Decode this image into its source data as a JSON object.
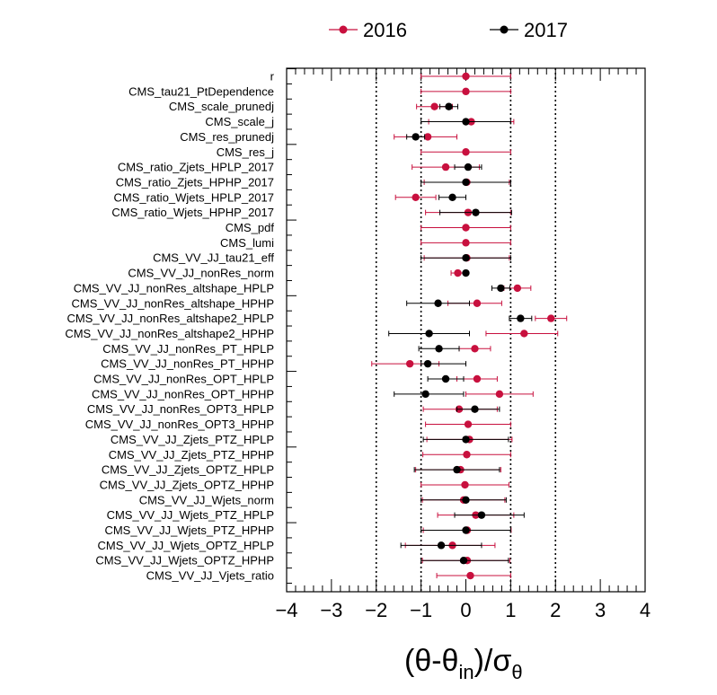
{
  "chart_data": {
    "type": "scatter",
    "xlabel": "(θ-θin)/σθ",
    "xlabel_parts": {
      "open": "(θ-θ",
      "sub1": "in",
      "mid": ")/σ",
      "sub2": "θ"
    },
    "xlim": [
      -4,
      4
    ],
    "x_ticks": [
      "−4",
      "−3",
      "−2",
      "−1",
      "0",
      "1",
      "2",
      "3",
      "4"
    ],
    "reference_lines": [
      -2,
      -1,
      1,
      2
    ],
    "grid": false,
    "legend_position": "top",
    "categories": [
      "r",
      "CMS_tau21_PtDependence",
      "CMS_scale_prunedj",
      "CMS_scale_j",
      "CMS_res_prunedj",
      "CMS_res_j",
      "CMS_ratio_Zjets_HPLP_2017",
      "CMS_ratio_Zjets_HPHP_2017",
      "CMS_ratio_Wjets_HPLP_2017",
      "CMS_ratio_Wjets_HPHP_2017",
      "CMS_pdf",
      "CMS_lumi",
      "CMS_VV_JJ_tau21_eff",
      "CMS_VV_JJ_nonRes_norm",
      "CMS_VV_JJ_nonRes_altshape_HPLP",
      "CMS_VV_JJ_nonRes_altshape_HPHP",
      "CMS_VV_JJ_nonRes_altshape2_HPLP",
      "CMS_VV_JJ_nonRes_altshape2_HPHP",
      "CMS_VV_JJ_nonRes_PT_HPLP",
      "CMS_VV_JJ_nonRes_PT_HPHP",
      "CMS_VV_JJ_nonRes_OPT_HPLP",
      "CMS_VV_JJ_nonRes_OPT_HPHP",
      "CMS_VV_JJ_nonRes_OPT3_HPLP",
      "CMS_VV_JJ_nonRes_OPT3_HPHP",
      "CMS_VV_JJ_Zjets_PTZ_HPLP",
      "CMS_VV_JJ_Zjets_PTZ_HPHP",
      "CMS_VV_JJ_Zjets_OPTZ_HPLP",
      "CMS_VV_JJ_Zjets_OPTZ_HPHP",
      "CMS_VV_JJ_Wjets_norm",
      "CMS_VV_JJ_Wjets_PTZ_HPLP",
      "CMS_VV_JJ_Wjets_PTZ_HPHP",
      "CMS_VV_JJ_Wjets_OPTZ_HPLP",
      "CMS_VV_JJ_Wjets_OPTZ_HPHP",
      "CMS_VV_JJ_Vjets_ratio"
    ],
    "series": [
      {
        "name": "2016",
        "color": "#c8103e",
        "values": [
          0.0,
          0.0,
          -0.7,
          0.12,
          -0.85,
          0.0,
          -0.45,
          0.02,
          -1.12,
          0.05,
          0.0,
          0.0,
          0.02,
          -0.18,
          1.15,
          0.25,
          1.9,
          1.3,
          0.2,
          -1.25,
          0.25,
          0.75,
          -0.15,
          0.05,
          0.08,
          0.02,
          -0.12,
          -0.02,
          -0.05,
          0.22,
          0.03,
          -0.3,
          0.03,
          0.1
        ],
        "err_low": [
          1.0,
          1.0,
          0.4,
          0.95,
          0.75,
          1.0,
          0.75,
          0.95,
          0.45,
          0.95,
          1.0,
          1.0,
          0.95,
          0.15,
          0.3,
          0.65,
          0.35,
          0.85,
          0.35,
          0.85,
          0.45,
          0.75,
          0.8,
          0.95,
          0.95,
          0.98,
          1.0,
          0.98,
          0.92,
          0.85,
          0.98,
          1.05,
          1.0,
          0.75
        ],
        "err_high": [
          1.0,
          1.0,
          0.4,
          0.95,
          0.65,
          1.0,
          0.75,
          0.95,
          0.45,
          0.95,
          1.0,
          1.0,
          0.95,
          0.15,
          0.3,
          0.55,
          0.35,
          0.75,
          0.35,
          0.65,
          0.45,
          0.75,
          0.85,
          0.95,
          0.95,
          0.98,
          0.9,
          0.98,
          0.92,
          0.85,
          0.98,
          0.95,
          0.95,
          0.9
        ]
      },
      {
        "name": "2017",
        "color": "#000000",
        "values": [
          null,
          null,
          -0.38,
          0.0,
          -1.12,
          null,
          0.05,
          0.0,
          -0.3,
          0.22,
          null,
          null,
          0.0,
          0.0,
          0.78,
          -0.62,
          1.22,
          -0.82,
          -0.6,
          -0.85,
          -0.45,
          -0.9,
          0.2,
          null,
          0.0,
          null,
          -0.2,
          null,
          0.0,
          0.35,
          0.0,
          -0.55,
          -0.05,
          null
        ],
        "err_low": [
          0,
          0,
          0.2,
          1.0,
          0.2,
          0,
          0.3,
          1.0,
          0.3,
          0.8,
          0,
          0,
          1.0,
          0.05,
          0.2,
          0.7,
          0.25,
          0.9,
          0.45,
          0.15,
          0.4,
          0.7,
          0.4,
          0,
          0.95,
          0,
          0.95,
          0,
          1.0,
          0.6,
          1.0,
          0.9,
          0.95,
          0
        ],
        "err_high": [
          0,
          0,
          0.2,
          1.0,
          0.2,
          0,
          0.3,
          1.0,
          0.3,
          0.8,
          0,
          0,
          1.0,
          0.05,
          0.2,
          0.7,
          0.25,
          0.9,
          0.45,
          0.85,
          0.4,
          0.85,
          0.55,
          0,
          0.95,
          0,
          0.95,
          0,
          0.9,
          0.95,
          1.0,
          0.9,
          1.0,
          0
        ]
      }
    ]
  }
}
